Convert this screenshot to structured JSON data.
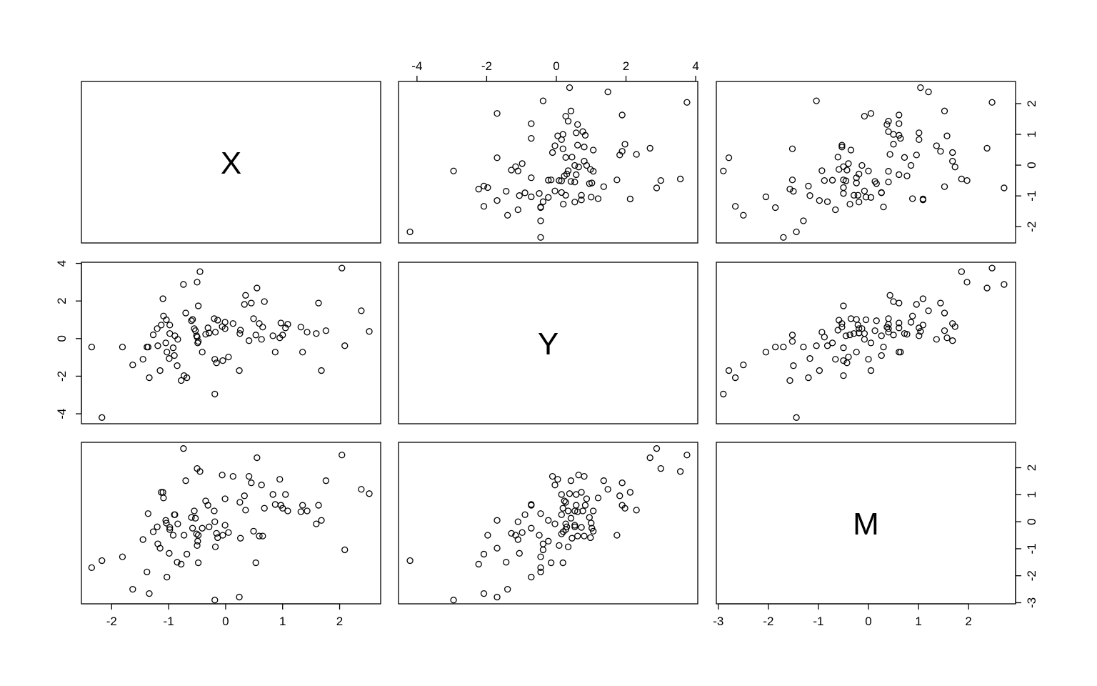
{
  "chart_data": {
    "type": "pairs",
    "color": "#000000",
    "variables": [
      {
        "name": "X",
        "lim": [
          -2.53,
          2.72
        ],
        "ticks": [
          -2,
          -1,
          0,
          1,
          2
        ],
        "values": [
          -2.35,
          -2.17,
          -1.81,
          -1.63,
          -1.45,
          -1.38,
          -1.36,
          -1.34,
          -1.27,
          -1.2,
          -1.19,
          -1.15,
          -1.13,
          -1.1,
          -1.09,
          -1.05,
          -1.04,
          -1.03,
          -0.99,
          -0.98,
          -0.98,
          -0.92,
          -0.9,
          -0.89,
          -0.85,
          -0.84,
          -0.78,
          -0.74,
          -0.73,
          -0.7,
          -0.68,
          -0.6,
          -0.58,
          -0.55,
          -0.53,
          -0.51,
          -0.5,
          -0.49,
          -0.48,
          -0.5,
          -0.45,
          -0.48,
          -0.41,
          -0.35,
          -0.31,
          -0.29,
          -0.2,
          -0.19,
          -0.19,
          -0.18,
          -0.16,
          -0.14,
          -0.06,
          -0.05,
          -0.01,
          -0.01,
          0.05,
          0.13,
          0.24,
          0.25,
          0.26,
          0.33,
          0.35,
          0.41,
          0.45,
          0.49,
          0.53,
          0.55,
          0.59,
          0.63,
          0.65,
          0.68,
          0.83,
          0.87,
          0.95,
          0.97,
          1.0,
          1.05,
          1.09,
          1.32,
          1.35,
          1.43,
          1.59,
          1.63,
          1.68,
          1.76,
          2.04,
          2.09,
          2.38,
          2.52
        ]
      },
      {
        "name": "Y",
        "lim": [
          -4.53,
          4.06
        ],
        "ticks": [
          -4,
          -2,
          0,
          2,
          4
        ],
        "values": [
          -0.45,
          -4.2,
          -0.45,
          -1.4,
          -1.1,
          -0.45,
          -0.45,
          -2.08,
          0.2,
          0.53,
          -0.38,
          -1.7,
          0.72,
          2.12,
          1.2,
          -0.23,
          1.0,
          -0.72,
          -1.06,
          0.72,
          0.27,
          -0.49,
          -0.9,
          0.15,
          -1.44,
          -0.04,
          -2.23,
          2.88,
          -1.97,
          1.36,
          -2.08,
          0.95,
          1.02,
          0.53,
          0.42,
          0.15,
          0.08,
          -0.23,
          -0.15,
          3.0,
          3.56,
          1.74,
          -0.72,
          0.23,
          0.57,
          0.3,
          1.06,
          -1.1,
          -2.95,
          0.34,
          -1.29,
          0.98,
          0.64,
          -1.17,
          0.87,
          0.53,
          -0.98,
          0.8,
          -1.7,
          0.27,
          0.45,
          1.82,
          2.3,
          -0.11,
          1.89,
          1.06,
          0.19,
          2.69,
          0.8,
          -0.04,
          0.61,
          1.97,
          0.15,
          -0.72,
          0.04,
          0.83,
          0.19,
          0.57,
          0.76,
          0.61,
          -0.72,
          0.34,
          0.27,
          1.89,
          -1.7,
          0.42,
          3.75,
          -0.38,
          1.48,
          0.38
        ]
      },
      {
        "name": "M",
        "lim": [
          -3.04,
          2.94
        ],
        "ticks": [
          -3,
          -2,
          -1,
          0,
          1,
          2
        ],
        "values": [
          -1.7,
          -1.44,
          -1.3,
          -2.5,
          -0.66,
          -1.86,
          0.3,
          -2.66,
          -0.37,
          -0.19,
          -0.82,
          -0.98,
          1.09,
          1.09,
          0.88,
          0.05,
          -0.05,
          -2.05,
          -1.17,
          -0.21,
          -0.29,
          -0.5,
          0.26,
          0.26,
          -1.5,
          -0.08,
          -1.57,
          2.71,
          -0.5,
          1.52,
          -1.2,
          0.16,
          -0.24,
          0.4,
          0.13,
          -0.45,
          -0.88,
          -0.72,
          -1.52,
          1.97,
          1.86,
          -0.5,
          -0.24,
          0.77,
          0.61,
          -0.19,
          0.4,
          0.0,
          -2.9,
          -0.93,
          -0.43,
          -0.59,
          1.73,
          -0.5,
          0.85,
          -0.13,
          -0.4,
          1.68,
          -2.79,
          0.72,
          -0.61,
          0.96,
          0.43,
          1.68,
          1.44,
          -0.35,
          -1.52,
          2.37,
          -0.53,
          1.36,
          -0.53,
          0.5,
          1.01,
          0.64,
          1.57,
          0.61,
          0.5,
          1.01,
          0.4,
          0.37,
          0.61,
          0.4,
          -0.08,
          0.61,
          0.05,
          1.52,
          2.47,
          -1.04,
          1.2,
          1.04
        ]
      }
    ]
  }
}
